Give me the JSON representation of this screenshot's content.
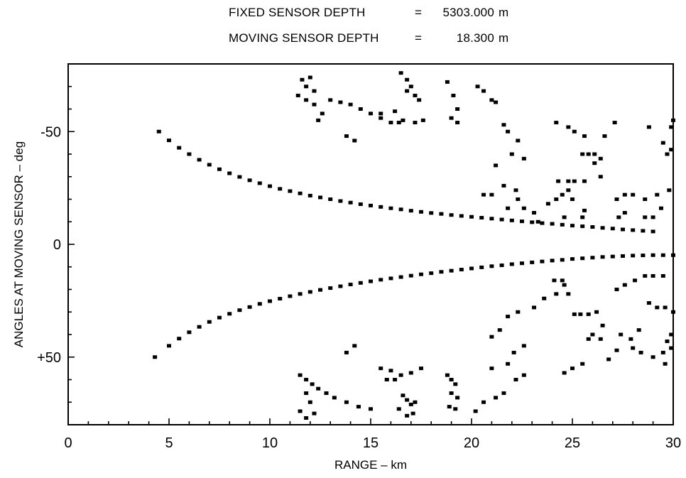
{
  "header": {
    "fixed_label": "FIXED SENSOR DEPTH",
    "fixed_eq": "=",
    "fixed_value": "5303.000",
    "fixed_unit": "m",
    "moving_label": "MOVING SENSOR DEPTH",
    "moving_eq": "=",
    "moving_value": "18.300",
    "moving_unit": "m"
  },
  "chart_data": {
    "type": "scatter",
    "xlabel": "RANGE – km",
    "ylabel": "ANGLES AT MOVING SENSOR – deg",
    "xlim": [
      0,
      30
    ],
    "ylim": [
      -80,
      80
    ],
    "y_inverted": true,
    "grid": false,
    "x_ticks": [
      0,
      5,
      10,
      15,
      20,
      25,
      30
    ],
    "x_tick_labels": [
      "0",
      "5",
      "10",
      "15",
      "20",
      "25",
      "30"
    ],
    "y_ticks": [
      -50,
      0,
      50
    ],
    "y_tick_labels": [
      "-50",
      "0",
      "+50"
    ],
    "series": [
      {
        "points": [
          [
            4.5,
            -50
          ],
          [
            5,
            -46.1
          ],
          [
            5.5,
            -42.8
          ],
          [
            6,
            -40
          ],
          [
            6.5,
            -37.5
          ],
          [
            7,
            -35.3
          ],
          [
            7.5,
            -33.3
          ],
          [
            8,
            -31.5
          ],
          [
            8.5,
            -29.9
          ],
          [
            9,
            -28.4
          ],
          [
            9.5,
            -27.1
          ],
          [
            10,
            -25.8
          ],
          [
            10.5,
            -24.6
          ],
          [
            11,
            -23.6
          ],
          [
            11.5,
            -22.6
          ],
          [
            12,
            -21.6
          ],
          [
            12.5,
            -20.8
          ],
          [
            13,
            -20
          ],
          [
            13.5,
            -19.2
          ],
          [
            14,
            -18.5
          ],
          [
            14.5,
            -17.8
          ],
          [
            15,
            -17.2
          ],
          [
            15.5,
            -16.6
          ],
          [
            16,
            -16
          ],
          [
            16.5,
            -15.5
          ],
          [
            17,
            -14.9
          ],
          [
            17.5,
            -14.4
          ],
          [
            18,
            -13.9
          ],
          [
            18.5,
            -13.5
          ],
          [
            19,
            -13
          ],
          [
            19.5,
            -12.6
          ],
          [
            20,
            -12.2
          ],
          [
            20.5,
            -11.8
          ],
          [
            21,
            -11.4
          ],
          [
            21.5,
            -11
          ],
          [
            22,
            -10.6
          ],
          [
            22.5,
            -10.2
          ],
          [
            23,
            -9.8
          ],
          [
            23.5,
            -9.4
          ],
          [
            24,
            -9.1
          ],
          [
            24.5,
            -8.7
          ],
          [
            25,
            -8.3
          ],
          [
            25.5,
            -8
          ],
          [
            26,
            -7.7
          ],
          [
            26.5,
            -7.3
          ],
          [
            27,
            -7
          ],
          [
            27.5,
            -6.6
          ],
          [
            28,
            -6.3
          ],
          [
            28.5,
            -6
          ],
          [
            29,
            -5.7
          ],
          [
            4.3,
            50
          ],
          [
            5,
            45
          ],
          [
            5.5,
            41.8
          ],
          [
            6,
            39
          ],
          [
            6.5,
            36.6
          ],
          [
            7,
            34.4
          ],
          [
            7.5,
            32.5
          ],
          [
            8,
            30.8
          ],
          [
            8.5,
            29.2
          ],
          [
            9,
            27.8
          ],
          [
            9.5,
            26.4
          ],
          [
            10,
            25.2
          ],
          [
            10.5,
            24.1
          ],
          [
            11,
            23
          ],
          [
            11.5,
            22
          ],
          [
            12,
            21.1
          ],
          [
            12.5,
            20.2
          ],
          [
            13,
            19.4
          ],
          [
            13.5,
            18.6
          ],
          [
            14,
            17.8
          ],
          [
            14.5,
            17.1
          ],
          [
            15,
            16.4
          ],
          [
            15.5,
            15.7
          ],
          [
            16,
            15.1
          ],
          [
            16.5,
            14.5
          ],
          [
            17,
            13.9
          ],
          [
            17.5,
            13.3
          ],
          [
            18,
            12.8
          ],
          [
            18.5,
            12.2
          ],
          [
            19,
            11.7
          ],
          [
            19.5,
            11.2
          ],
          [
            20,
            10.7
          ],
          [
            20.5,
            10.2
          ],
          [
            21,
            9.7
          ],
          [
            21.5,
            9.3
          ],
          [
            22,
            8.8
          ],
          [
            22.5,
            8.4
          ],
          [
            23,
            8
          ],
          [
            23.5,
            7.6
          ],
          [
            24,
            7.2
          ],
          [
            24.5,
            6.9
          ],
          [
            25,
            6.5
          ],
          [
            25.5,
            6.2
          ],
          [
            26,
            5.9
          ],
          [
            26.5,
            5.6
          ],
          [
            27,
            5.4
          ],
          [
            27.5,
            5.2
          ],
          [
            28,
            5
          ],
          [
            28.5,
            4.9
          ],
          [
            29,
            4.8
          ],
          [
            29.5,
            4.8
          ],
          [
            30,
            4.8
          ],
          [
            11.6,
            -73
          ],
          [
            11.8,
            -70
          ],
          [
            12,
            -74
          ],
          [
            12.2,
            -68
          ],
          [
            11.4,
            -66
          ],
          [
            11.8,
            -64
          ],
          [
            12.2,
            -62
          ],
          [
            12.6,
            -58
          ],
          [
            12.4,
            -55
          ],
          [
            13,
            -64
          ],
          [
            13.5,
            -63
          ],
          [
            14,
            -62
          ],
          [
            14.5,
            -60
          ],
          [
            15,
            -58
          ],
          [
            15.5,
            -56
          ],
          [
            16,
            -54
          ],
          [
            16.4,
            -54
          ],
          [
            13.8,
            -48
          ],
          [
            14.2,
            -46
          ],
          [
            15.5,
            -58
          ],
          [
            16.2,
            -59
          ],
          [
            16.8,
            -68
          ],
          [
            17.2,
            -66
          ],
          [
            17.4,
            -64
          ],
          [
            16.5,
            -76
          ],
          [
            16.8,
            -73
          ],
          [
            17,
            -70
          ],
          [
            17.6,
            -55
          ],
          [
            17.2,
            -54
          ],
          [
            16.6,
            -55
          ],
          [
            18.8,
            -72
          ],
          [
            19.1,
            -66
          ],
          [
            19.3,
            -60
          ],
          [
            19.0,
            -56
          ],
          [
            19.3,
            -54
          ],
          [
            20.3,
            -70
          ],
          [
            20.6,
            -68
          ],
          [
            21.0,
            -64
          ],
          [
            21.2,
            -63
          ],
          [
            21.6,
            -53
          ],
          [
            21.8,
            -50
          ],
          [
            22.3,
            -46
          ],
          [
            22.0,
            -40
          ],
          [
            22.6,
            -38
          ],
          [
            21.2,
            -35
          ],
          [
            20.6,
            -22
          ],
          [
            21.0,
            -22
          ],
          [
            21.6,
            -26
          ],
          [
            22.2,
            -24
          ],
          [
            22.3,
            -20
          ],
          [
            21.8,
            -16
          ],
          [
            22.6,
            -16
          ],
          [
            23.1,
            -14
          ],
          [
            23.3,
            -10
          ],
          [
            23.8,
            -18
          ],
          [
            24.2,
            -20
          ],
          [
            24.8,
            -24
          ],
          [
            24.5,
            -22
          ],
          [
            24.3,
            -28
          ],
          [
            24.8,
            -28
          ],
          [
            25.1,
            -28
          ],
          [
            25.6,
            -28
          ],
          [
            25.0,
            -20
          ],
          [
            25.6,
            -15
          ],
          [
            24.6,
            -12
          ],
          [
            25.5,
            -12
          ],
          [
            24.2,
            -54
          ],
          [
            24.8,
            -52
          ],
          [
            25.1,
            -50
          ],
          [
            25.6,
            -48
          ],
          [
            25.5,
            -40
          ],
          [
            25.8,
            -40
          ],
          [
            26.1,
            -40
          ],
          [
            26.4,
            -38
          ],
          [
            26.1,
            -36
          ],
          [
            26.4,
            -30
          ],
          [
            26.6,
            -48
          ],
          [
            27.2,
            -20
          ],
          [
            27.6,
            -22
          ],
          [
            28.0,
            -22
          ],
          [
            27.3,
            -12
          ],
          [
            27.6,
            -14
          ],
          [
            28.6,
            -12
          ],
          [
            29.0,
            -12
          ],
          [
            29.4,
            -16
          ],
          [
            28.6,
            -20
          ],
          [
            29.2,
            -22
          ],
          [
            29.8,
            -24
          ],
          [
            29.7,
            -40
          ],
          [
            29.9,
            -42
          ],
          [
            29.5,
            -45
          ],
          [
            29.9,
            -52
          ],
          [
            28.8,
            -52
          ],
          [
            27.1,
            -54
          ],
          [
            30.0,
            -55
          ],
          [
            30.0,
            30
          ],
          [
            11.5,
            58
          ],
          [
            11.8,
            60
          ],
          [
            12.1,
            62
          ],
          [
            12.4,
            64
          ],
          [
            12.8,
            66
          ],
          [
            13.2,
            68
          ],
          [
            13.8,
            70
          ],
          [
            14.4,
            72
          ],
          [
            15,
            73
          ],
          [
            11.8,
            66
          ],
          [
            12,
            70
          ],
          [
            12.2,
            75
          ],
          [
            11.5,
            74
          ],
          [
            11.8,
            77
          ],
          [
            13.8,
            48
          ],
          [
            14.2,
            45
          ],
          [
            15.5,
            55
          ],
          [
            16,
            56
          ],
          [
            16.5,
            58
          ],
          [
            17,
            57
          ],
          [
            17.5,
            55
          ],
          [
            15.8,
            60
          ],
          [
            16.2,
            60
          ],
          [
            16.6,
            67
          ],
          [
            16.8,
            69
          ],
          [
            17.0,
            71
          ],
          [
            17.2,
            70
          ],
          [
            16.4,
            73
          ],
          [
            16.8,
            76
          ],
          [
            17.1,
            75
          ],
          [
            18.8,
            58
          ],
          [
            19,
            60
          ],
          [
            19.2,
            62
          ],
          [
            19.0,
            66
          ],
          [
            19.3,
            68
          ],
          [
            18.9,
            72
          ],
          [
            19.2,
            73
          ],
          [
            20.2,
            74
          ],
          [
            20.6,
            70
          ],
          [
            21.2,
            68
          ],
          [
            21.6,
            66
          ],
          [
            22.2,
            60
          ],
          [
            22.6,
            58
          ],
          [
            21.0,
            55
          ],
          [
            21.8,
            53
          ],
          [
            22.1,
            48
          ],
          [
            22.6,
            45
          ],
          [
            21.0,
            41
          ],
          [
            21.4,
            38
          ],
          [
            21.8,
            32
          ],
          [
            22.3,
            30
          ],
          [
            23.1,
            28
          ],
          [
            23.6,
            24
          ],
          [
            24.1,
            16
          ],
          [
            24.5,
            16
          ],
          [
            24.6,
            18
          ],
          [
            24.2,
            22
          ],
          [
            24.8,
            22
          ],
          [
            25.1,
            31
          ],
          [
            25.4,
            31
          ],
          [
            25.8,
            31
          ],
          [
            26.2,
            30
          ],
          [
            26.5,
            36
          ],
          [
            26.0,
            40
          ],
          [
            26.4,
            42
          ],
          [
            25.8,
            42
          ],
          [
            25.5,
            53
          ],
          [
            25.0,
            55
          ],
          [
            24.6,
            57
          ],
          [
            26.8,
            51
          ],
          [
            27.2,
            47
          ],
          [
            28.0,
            46
          ],
          [
            28.4,
            48
          ],
          [
            27.4,
            40
          ],
          [
            27.9,
            42
          ],
          [
            28.3,
            38
          ],
          [
            27.2,
            20
          ],
          [
            27.6,
            18
          ],
          [
            28.1,
            16
          ],
          [
            28.6,
            14
          ],
          [
            29.0,
            14
          ],
          [
            29.5,
            14
          ],
          [
            28.8,
            26
          ],
          [
            29.2,
            28
          ],
          [
            29.6,
            28
          ],
          [
            29.9,
            40
          ],
          [
            29.7,
            43
          ],
          [
            29.5,
            48
          ],
          [
            29.9,
            46
          ],
          [
            29.0,
            50
          ],
          [
            29.6,
            53
          ]
        ]
      }
    ]
  }
}
